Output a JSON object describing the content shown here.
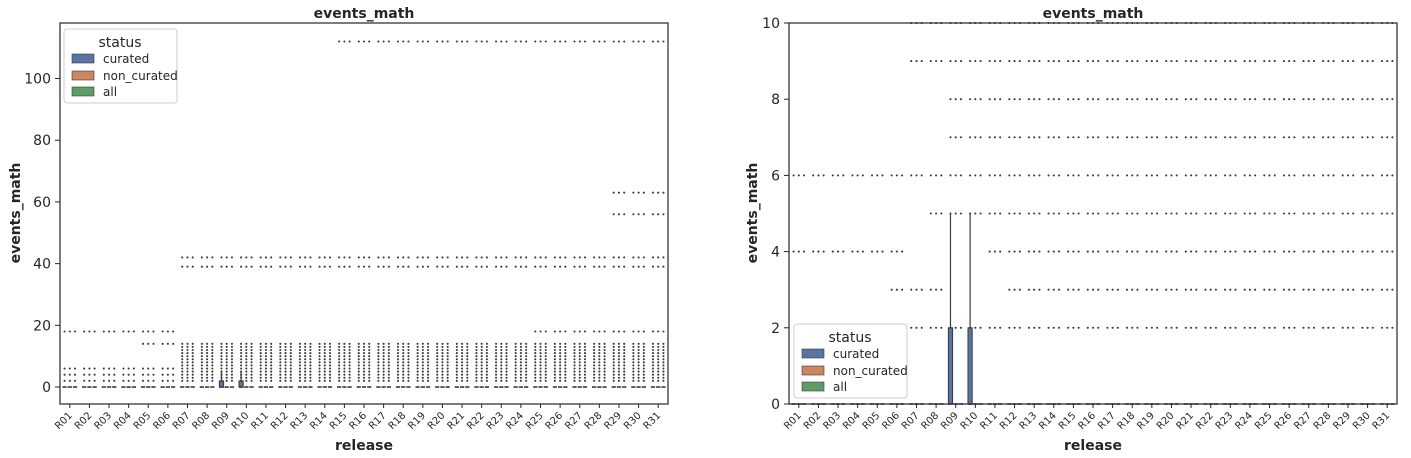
{
  "colors": {
    "curated": "#5873a4",
    "non_curated": "#cc8662",
    "all": "#5d9e68",
    "outlier": "#3a3a3a",
    "frame": "#262626"
  },
  "chart_data": [
    {
      "type": "box",
      "title": "events_math",
      "xlabel": "release",
      "ylabel": "events_math",
      "ylim": [
        -5.5,
        118
      ],
      "yticks": [
        0,
        20,
        40,
        60,
        80,
        100
      ],
      "grid": false,
      "legend": {
        "title": "status",
        "placement": "top-left",
        "entries": [
          "curated",
          "non_curated",
          "all"
        ]
      },
      "categories": [
        "R01",
        "R02",
        "R03",
        "R04",
        "R05",
        "R06",
        "R07",
        "R08",
        "R09",
        "R10",
        "R11",
        "R12",
        "R13",
        "R14",
        "R15",
        "R16",
        "R17",
        "R18",
        "R19",
        "R20",
        "R21",
        "R22",
        "R23",
        "R24",
        "R25",
        "R26",
        "R27",
        "R28",
        "R29",
        "R30",
        "R31"
      ],
      "series": [
        {
          "name": "curated",
          "boxes": [
            {
              "r": "R09",
              "q1": 0,
              "median": 0,
              "q3": 2,
              "whisker_high": 5
            },
            {
              "r": "R10",
              "q1": 0,
              "median": 0,
              "q3": 2,
              "whisker_high": 5
            }
          ]
        }
      ],
      "outlier_bands": [
        {
          "from": "R01",
          "to": "R06",
          "values": [
            2,
            4,
            6,
            18
          ]
        },
        {
          "from": "R05",
          "to": "R06",
          "values": [
            14
          ]
        },
        {
          "from": "R07",
          "to": "R31",
          "values": [
            2,
            3,
            4,
            5,
            6,
            7,
            8,
            9,
            10,
            11,
            12,
            13,
            14,
            39,
            42
          ]
        },
        {
          "from": "R15",
          "to": "R31",
          "values": [
            112
          ]
        },
        {
          "from": "R25",
          "to": "R31",
          "values": [
            18
          ]
        },
        {
          "from": "R29",
          "to": "R31",
          "values": [
            56,
            63
          ]
        }
      ]
    },
    {
      "type": "box",
      "title": "events_math",
      "xlabel": "release",
      "ylabel": "events_math",
      "ylim": [
        0,
        10
      ],
      "yticks": [
        0,
        2,
        4,
        6,
        8,
        10
      ],
      "grid": false,
      "legend": {
        "title": "status",
        "placement": "bottom-left",
        "entries": [
          "curated",
          "non_curated",
          "all"
        ]
      },
      "categories": [
        "R01",
        "R02",
        "R03",
        "R04",
        "R05",
        "R06",
        "R07",
        "R08",
        "R09",
        "R10",
        "R11",
        "R12",
        "R13",
        "R14",
        "R15",
        "R16",
        "R17",
        "R18",
        "R19",
        "R20",
        "R21",
        "R22",
        "R23",
        "R24",
        "R25",
        "R26",
        "R27",
        "R28",
        "R29",
        "R30",
        "R31"
      ],
      "series": [
        {
          "name": "curated",
          "boxes": [
            {
              "r": "R09",
              "q1": 0,
              "median": 0,
              "q3": 2,
              "whisker_high": 5
            },
            {
              "r": "R10",
              "q1": 0,
              "median": 0,
              "q3": 2,
              "whisker_high": 5
            }
          ]
        }
      ],
      "outlier_bands": [
        {
          "from": "R01",
          "to": "R06",
          "values": [
            4,
            6
          ]
        },
        {
          "from": "R06",
          "to": "R06",
          "values": [
            3
          ]
        },
        {
          "from": "R07",
          "to": "R31",
          "values": [
            2,
            6,
            10
          ]
        },
        {
          "from": "R07",
          "to": "R08",
          "values": [
            3
          ]
        },
        {
          "from": "R08",
          "to": "R31",
          "values": [
            5
          ]
        },
        {
          "from": "R07",
          "to": "R31",
          "values": [
            9
          ]
        },
        {
          "from": "R09",
          "to": "R31",
          "values": [
            7,
            8
          ]
        },
        {
          "from": "R11",
          "to": "R31",
          "values": [
            4
          ]
        },
        {
          "from": "R12",
          "to": "R31",
          "values": [
            3
          ]
        }
      ]
    }
  ]
}
